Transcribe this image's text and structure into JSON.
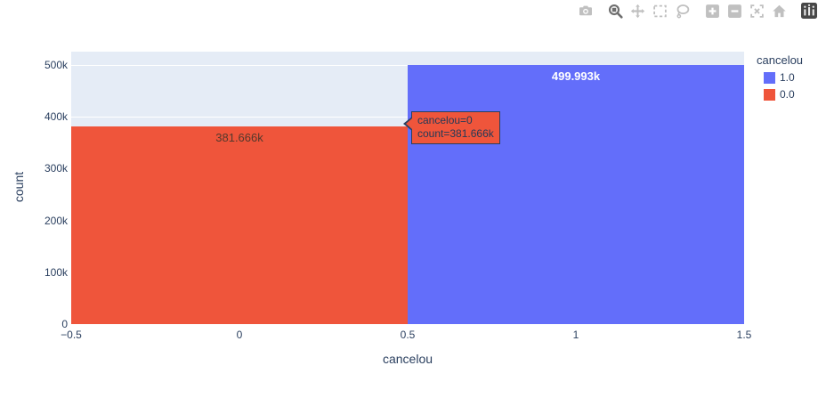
{
  "chart_data": {
    "type": "bar",
    "title": "",
    "xlabel": "cancelou",
    "ylabel": "count",
    "categories": [
      0,
      1
    ],
    "series": [
      {
        "name": "0.0",
        "x": 0,
        "count": 381666,
        "label": "381.666k",
        "color": "#EF553B"
      },
      {
        "name": "1.0",
        "x": 1,
        "count": 499993,
        "label": "499.993k",
        "color": "#636EFA"
      }
    ],
    "bar_width": 1.0,
    "xlim": [
      -0.5,
      1.5
    ],
    "ylim": [
      0,
      525000
    ],
    "y_scale_max": 500000,
    "x_ticks": [
      "−0.5",
      "0",
      "0.5",
      "1",
      "1.5"
    ],
    "y_ticks": [
      "0",
      "100k",
      "200k",
      "300k",
      "400k",
      "500k"
    ],
    "y_tick_values": [
      0,
      100000,
      200000,
      300000,
      400000,
      500000
    ],
    "grid": true,
    "grid_color": "#FFFFFF",
    "plot_bgcolor": "#E5ECF6",
    "legend_position": "right"
  },
  "legend": {
    "title": "cancelou",
    "items": [
      {
        "label": "1.0",
        "color": "#636EFA"
      },
      {
        "label": "0.0",
        "color": "#EF553B"
      }
    ]
  },
  "tooltip": {
    "line1": "cancelou=0",
    "line2": "count=381.666k",
    "bgcolor": "#EF553B",
    "border_color": "#2a3f5f"
  },
  "modebar": {
    "icons": [
      "camera",
      "zoom",
      "pan",
      "box-select",
      "lasso-select",
      "zoom-in",
      "zoom-out",
      "autoscale",
      "reset-axes",
      "plotly-logo"
    ],
    "active_tool": "zoom"
  },
  "colors": {
    "text": "#2a3f5f",
    "bar_label_inside_dark": "#53392c",
    "bar_label_inside_light": "#ffffff",
    "modebar_icon": "#c0c0c0",
    "modebar_icon_active": "#6e6e6e"
  }
}
